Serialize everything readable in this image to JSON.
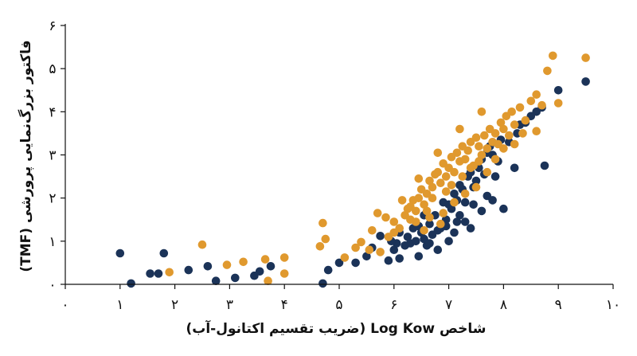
{
  "chart_data": {
    "type": "scatter",
    "xlabel": "شاخص Log Kow (ضریب تقسیم اکتانول-آب)",
    "ylabel": "فاکتور بزرگ‌نمایی پرورشی (TMF)",
    "xlim": [
      0,
      10
    ],
    "ylim": [
      0,
      6
    ],
    "x_ticks": [
      "۰",
      "۱",
      "۲",
      "۳",
      "۴",
      "۵",
      "۶",
      "۷",
      "۸",
      "۹",
      "۱۰"
    ],
    "y_ticks": [
      "۰",
      "۱",
      "۲",
      "۳",
      "۴",
      "۵",
      "۶"
    ],
    "grid": false,
    "series": [
      {
        "color": "#1b3358",
        "points": [
          [
            1.0,
            0.72
          ],
          [
            1.2,
            0.02
          ],
          [
            1.55,
            0.25
          ],
          [
            1.7,
            0.25
          ],
          [
            1.8,
            0.72
          ],
          [
            2.25,
            0.33
          ],
          [
            2.6,
            0.42
          ],
          [
            2.75,
            0.08
          ],
          [
            3.1,
            0.15
          ],
          [
            3.45,
            0.2
          ],
          [
            3.55,
            0.3
          ],
          [
            3.75,
            0.42
          ],
          [
            4.7,
            0.02
          ],
          [
            4.8,
            0.33
          ],
          [
            5.0,
            0.5
          ],
          [
            5.3,
            0.5
          ],
          [
            5.5,
            0.65
          ],
          [
            5.6,
            0.85
          ],
          [
            5.75,
            1.12
          ],
          [
            5.9,
            0.55
          ],
          [
            6.0,
            0.8
          ],
          [
            6.1,
            0.6
          ],
          [
            6.2,
            0.9
          ],
          [
            6.3,
            0.95
          ],
          [
            6.4,
            1.0
          ],
          [
            6.45,
            0.65
          ],
          [
            6.5,
            1.2
          ],
          [
            6.55,
            1.05
          ],
          [
            6.6,
            0.9
          ],
          [
            6.65,
            1.4
          ],
          [
            6.7,
            1.15
          ],
          [
            6.75,
            1.6
          ],
          [
            6.8,
            1.25
          ],
          [
            6.85,
            1.3
          ],
          [
            6.9,
            1.9
          ],
          [
            6.95,
            1.5
          ],
          [
            7.0,
            1.85
          ],
          [
            7.05,
            1.75
          ],
          [
            7.1,
            2.1
          ],
          [
            7.15,
            1.95
          ],
          [
            7.2,
            2.3
          ],
          [
            7.25,
            2.2
          ],
          [
            7.3,
            1.9
          ],
          [
            7.35,
            2.5
          ],
          [
            7.4,
            2.6
          ],
          [
            7.45,
            2.25
          ],
          [
            7.5,
            2.4
          ],
          [
            7.55,
            2.7
          ],
          [
            7.6,
            2.9
          ],
          [
            7.65,
            2.55
          ],
          [
            7.7,
            3.05
          ],
          [
            7.75,
            3.2
          ],
          [
            7.8,
            3.0
          ],
          [
            7.85,
            2.5
          ],
          [
            7.9,
            2.85
          ],
          [
            7.95,
            3.35
          ],
          [
            8.0,
            1.75
          ],
          [
            8.1,
            3.3
          ],
          [
            8.2,
            2.7
          ],
          [
            8.25,
            3.5
          ],
          [
            8.3,
            3.7
          ],
          [
            8.4,
            3.75
          ],
          [
            8.5,
            3.9
          ],
          [
            8.6,
            4.0
          ],
          [
            8.7,
            4.1
          ],
          [
            8.75,
            2.75
          ],
          [
            9.0,
            4.5
          ],
          [
            9.5,
            4.7
          ],
          [
            6.35,
            1.3
          ],
          [
            6.25,
            1.1
          ],
          [
            6.8,
            0.8
          ],
          [
            7.0,
            1.0
          ],
          [
            6.95,
            1.35
          ],
          [
            7.1,
            1.2
          ],
          [
            7.2,
            1.6
          ],
          [
            7.3,
            1.45
          ],
          [
            7.6,
            1.7
          ],
          [
            7.45,
            1.85
          ],
          [
            7.7,
            2.05
          ],
          [
            7.8,
            1.95
          ],
          [
            6.55,
            1.6
          ],
          [
            6.45,
            1.35
          ],
          [
            6.1,
            1.2
          ],
          [
            6.05,
            0.95
          ],
          [
            7.4,
            1.3
          ],
          [
            5.95,
            1.0
          ],
          [
            6.65,
            0.95
          ],
          [
            7.15,
            1.45
          ]
        ]
      },
      {
        "color": "#e0992e",
        "points": [
          [
            1.9,
            0.28
          ],
          [
            2.5,
            0.92
          ],
          [
            2.95,
            0.45
          ],
          [
            3.25,
            0.52
          ],
          [
            3.65,
            0.58
          ],
          [
            3.7,
            0.08
          ],
          [
            4.0,
            0.62
          ],
          [
            4.0,
            0.25
          ],
          [
            4.7,
            1.42
          ],
          [
            4.65,
            0.88
          ],
          [
            4.75,
            1.05
          ],
          [
            5.1,
            0.62
          ],
          [
            5.3,
            0.85
          ],
          [
            5.4,
            0.98
          ],
          [
            5.6,
            1.25
          ],
          [
            5.75,
            0.75
          ],
          [
            5.9,
            1.1
          ],
          [
            6.0,
            1.45
          ],
          [
            6.1,
            1.3
          ],
          [
            6.2,
            1.6
          ],
          [
            6.25,
            1.75
          ],
          [
            6.3,
            1.5
          ],
          [
            6.35,
            1.95
          ],
          [
            6.4,
            1.7
          ],
          [
            6.45,
            2.0
          ],
          [
            6.5,
            2.2
          ],
          [
            6.55,
            1.85
          ],
          [
            6.6,
            2.1
          ],
          [
            6.65,
            2.4
          ],
          [
            6.7,
            2.25
          ],
          [
            6.75,
            2.55
          ],
          [
            6.8,
            2.6
          ],
          [
            6.85,
            2.35
          ],
          [
            6.9,
            2.8
          ],
          [
            6.95,
            2.5
          ],
          [
            7.0,
            2.7
          ],
          [
            7.05,
            2.95
          ],
          [
            7.1,
            2.6
          ],
          [
            7.15,
            3.05
          ],
          [
            7.2,
            2.85
          ],
          [
            7.25,
            3.2
          ],
          [
            7.3,
            2.9
          ],
          [
            7.35,
            3.1
          ],
          [
            7.4,
            3.3
          ],
          [
            7.45,
            2.75
          ],
          [
            7.5,
            3.4
          ],
          [
            7.55,
            3.2
          ],
          [
            7.6,
            3.0
          ],
          [
            7.65,
            3.45
          ],
          [
            7.7,
            3.15
          ],
          [
            7.75,
            3.6
          ],
          [
            7.8,
            3.3
          ],
          [
            7.85,
            3.5
          ],
          [
            7.9,
            3.25
          ],
          [
            7.95,
            3.75
          ],
          [
            8.0,
            3.6
          ],
          [
            8.05,
            3.9
          ],
          [
            8.1,
            3.45
          ],
          [
            8.15,
            4.0
          ],
          [
            8.2,
            3.7
          ],
          [
            8.3,
            4.1
          ],
          [
            8.4,
            3.8
          ],
          [
            8.5,
            4.25
          ],
          [
            8.6,
            4.4
          ],
          [
            8.7,
            4.15
          ],
          [
            8.8,
            4.95
          ],
          [
            8.9,
            5.3
          ],
          [
            9.0,
            4.2
          ],
          [
            9.5,
            5.25
          ],
          [
            7.6,
            4.0
          ],
          [
            7.2,
            3.6
          ],
          [
            6.8,
            3.05
          ],
          [
            6.45,
            2.45
          ],
          [
            6.15,
            1.95
          ],
          [
            5.85,
            1.55
          ],
          [
            5.7,
            1.65
          ],
          [
            5.55,
            0.8
          ],
          [
            6.9,
            1.65
          ],
          [
            7.1,
            1.9
          ],
          [
            7.3,
            2.1
          ],
          [
            7.5,
            2.25
          ],
          [
            7.7,
            2.6
          ],
          [
            7.85,
            2.9
          ],
          [
            8.0,
            3.15
          ],
          [
            8.2,
            3.25
          ],
          [
            8.35,
            3.5
          ],
          [
            8.6,
            3.55
          ],
          [
            6.6,
            1.7
          ],
          [
            6.7,
            2.0
          ],
          [
            6.95,
            2.15
          ],
          [
            7.05,
            2.3
          ],
          [
            7.25,
            2.5
          ],
          [
            7.4,
            2.7
          ],
          [
            7.55,
            2.85
          ],
          [
            6.3,
            1.8
          ],
          [
            6.4,
            1.45
          ],
          [
            6.0,
            1.2
          ],
          [
            6.55,
            1.25
          ],
          [
            6.65,
            1.55
          ],
          [
            6.85,
            1.4
          ]
        ]
      }
    ]
  }
}
